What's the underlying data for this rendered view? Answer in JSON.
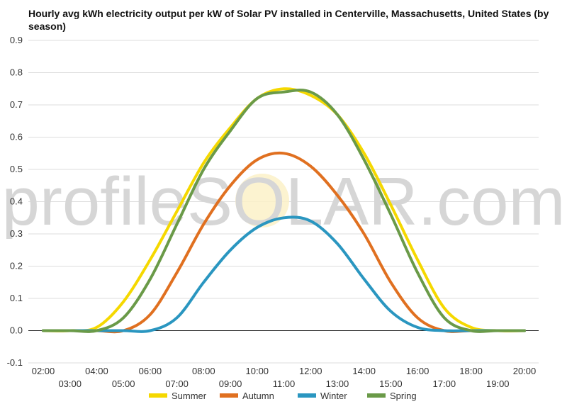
{
  "chart_data": {
    "type": "line",
    "title": "Hourly avg kWh electricity output per kW of Solar PV installed in Centerville, Massachusetts, United States (by season)",
    "ylim": [
      -0.1,
      0.9
    ],
    "yticks": [
      "-0.1",
      "0.0",
      "0.1",
      "0.2",
      "0.3",
      "0.4",
      "0.5",
      "0.6",
      "0.7",
      "0.8",
      "0.9"
    ],
    "xticks": [
      "02:00",
      "03:00",
      "04:00",
      "05:00",
      "06:00",
      "07:00",
      "08:00",
      "09:00",
      "10:00",
      "11:00",
      "12:00",
      "13:00",
      "14:00",
      "15:00",
      "16:00",
      "17:00",
      "18:00",
      "19:00",
      "20:00"
    ],
    "grid": true,
    "legend_position": "bottom",
    "watermark": "profileSOLAR.com",
    "x": [
      2,
      3,
      4,
      5,
      6,
      7,
      8,
      9,
      10,
      11,
      12,
      13,
      14,
      15,
      16,
      17,
      18,
      19,
      20
    ],
    "series": [
      {
        "name": "Summer",
        "color": "#f5d800",
        "values": [
          0.0,
          0.0,
          0.01,
          0.09,
          0.22,
          0.37,
          0.52,
          0.63,
          0.72,
          0.75,
          0.73,
          0.67,
          0.55,
          0.39,
          0.22,
          0.07,
          0.01,
          0.0,
          0.0
        ]
      },
      {
        "name": "Autumn",
        "color": "#e07020",
        "values": [
          0.0,
          0.0,
          0.0,
          0.0,
          0.05,
          0.18,
          0.33,
          0.45,
          0.53,
          0.55,
          0.51,
          0.42,
          0.3,
          0.15,
          0.04,
          0.0,
          0.0,
          0.0,
          0.0
        ]
      },
      {
        "name": "Winter",
        "color": "#2a96c0",
        "values": [
          0.0,
          0.0,
          0.0,
          0.0,
          0.0,
          0.04,
          0.15,
          0.25,
          0.32,
          0.35,
          0.34,
          0.27,
          0.16,
          0.06,
          0.01,
          0.0,
          0.0,
          0.0,
          0.0
        ]
      },
      {
        "name": "Spring",
        "color": "#6a9a48",
        "values": [
          0.0,
          0.0,
          0.0,
          0.04,
          0.16,
          0.33,
          0.5,
          0.62,
          0.72,
          0.74,
          0.74,
          0.67,
          0.53,
          0.36,
          0.18,
          0.04,
          0.0,
          0.0,
          0.0
        ]
      }
    ]
  }
}
